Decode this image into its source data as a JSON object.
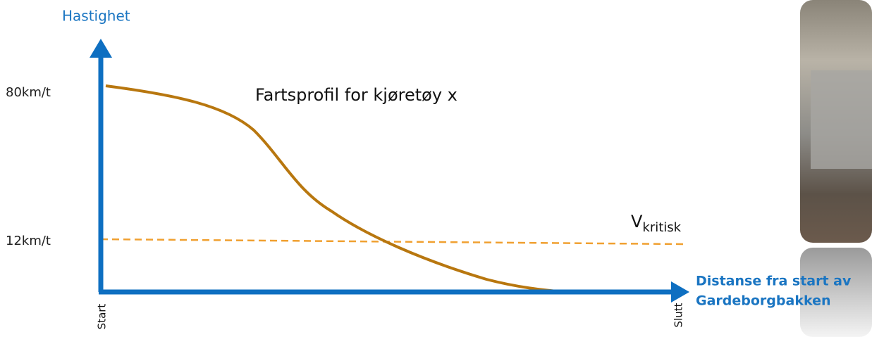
{
  "y_axis": {
    "label": "Hastighet",
    "ticks": [
      "80km/t",
      "12km/t"
    ]
  },
  "x_axis": {
    "label_lines": [
      "Distanse fra start av",
      "Gardeborgbakken"
    ],
    "start": "Start",
    "end": "Slutt"
  },
  "curve_label": "Fartsprofil for kjøretøy x",
  "threshold": {
    "label": "V",
    "subscript": "kritisk"
  }
}
